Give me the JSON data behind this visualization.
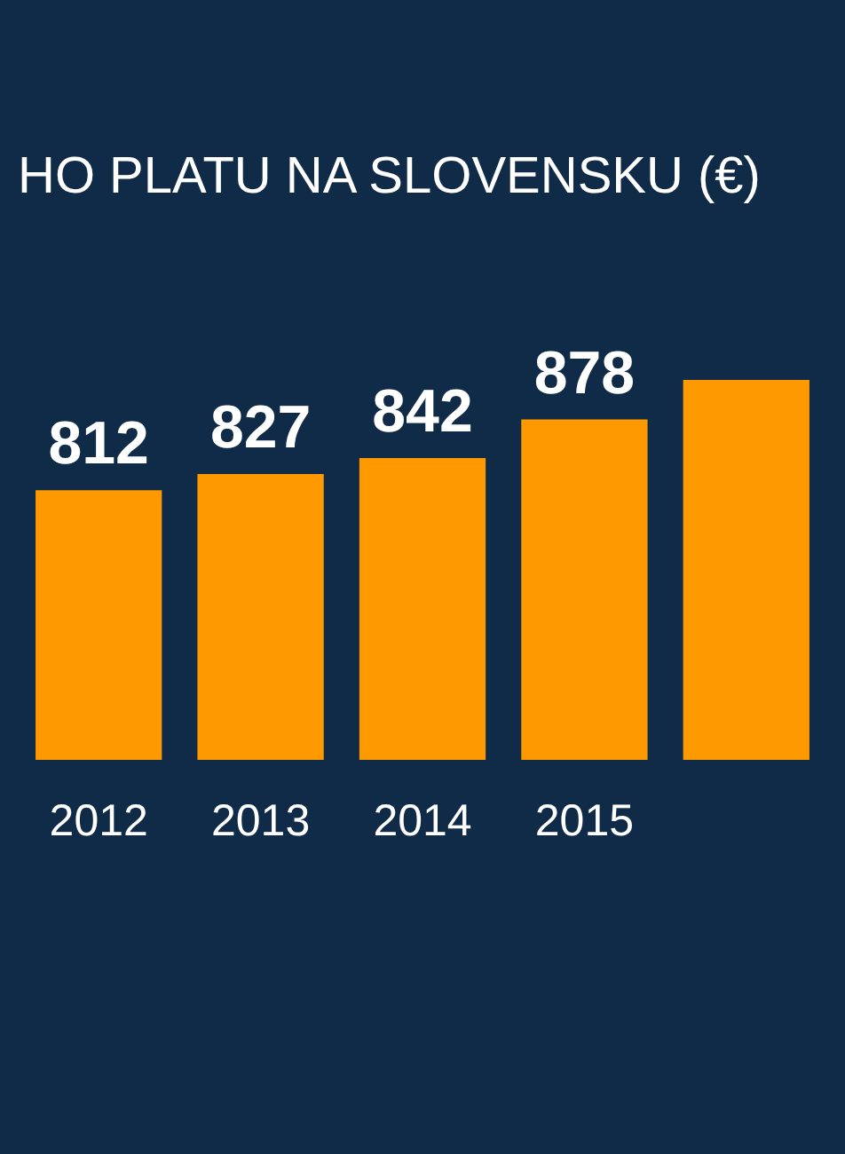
{
  "chart_data": {
    "type": "bar",
    "title": "HO PLATU NA SLOVENSKU (€)",
    "categories": [
      "2012",
      "2013",
      "2014",
      "2015",
      null
    ],
    "values": [
      812,
      827,
      842,
      878,
      915
    ],
    "value_labels": [
      "812",
      "827",
      "842",
      "878",
      null
    ],
    "color": "#ff9900",
    "ylim": [
      560,
      915
    ],
    "tick_labels": "x"
  }
}
